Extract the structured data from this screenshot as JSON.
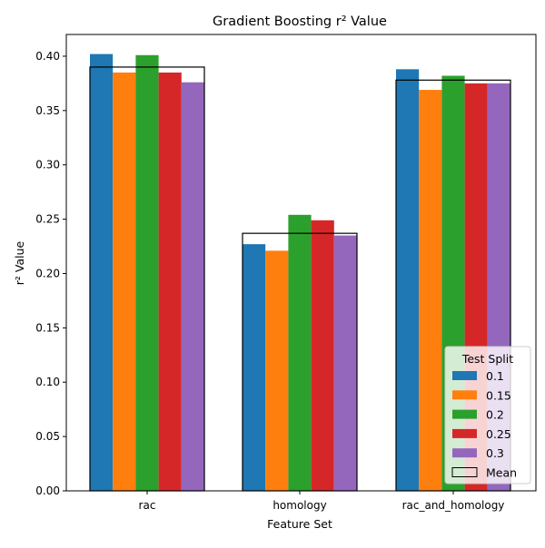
{
  "chart_data": {
    "type": "bar",
    "title": "Gradient Boosting r² Value",
    "xlabel": "Feature Set",
    "ylabel": "r² Value",
    "categories": [
      "rac",
      "homology",
      "rac_and_homology"
    ],
    "ylim": [
      0,
      0.42
    ],
    "yticks": [
      "0.00",
      "0.05",
      "0.10",
      "0.15",
      "0.20",
      "0.25",
      "0.30",
      "0.35",
      "0.40"
    ],
    "grid": false,
    "legend": {
      "title": "Test Split",
      "placement": "lower-right"
    },
    "series": [
      {
        "name": "0.1",
        "color": "#1f77b4",
        "values": [
          0.402,
          0.227,
          0.388
        ]
      },
      {
        "name": "0.15",
        "color": "#ff7f0e",
        "values": [
          0.385,
          0.221,
          0.369
        ]
      },
      {
        "name": "0.2",
        "color": "#2ca02c",
        "values": [
          0.401,
          0.254,
          0.382
        ]
      },
      {
        "name": "0.25",
        "color": "#d62728",
        "values": [
          0.385,
          0.249,
          0.375
        ]
      },
      {
        "name": "0.3",
        "color": "#9467bd",
        "values": [
          0.376,
          0.235,
          0.375
        ]
      }
    ],
    "mean": {
      "name": "Mean",
      "values": [
        0.39,
        0.237,
        0.378
      ]
    }
  }
}
